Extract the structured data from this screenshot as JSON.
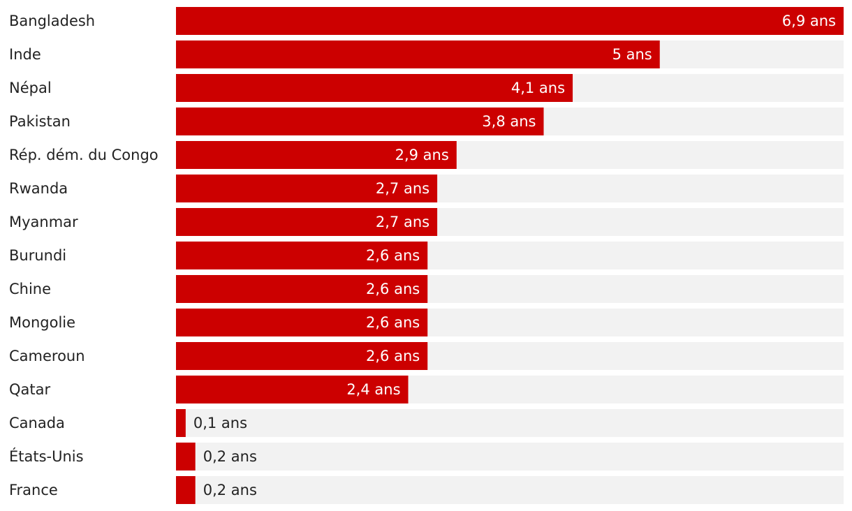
{
  "chart_data": {
    "type": "bar",
    "orientation": "horizontal",
    "unit_suffix": " ans",
    "categories": [
      "Bangladesh",
      "Inde",
      "Népal",
      "Pakistan",
      "Rép. dém. du Congo",
      "Rwanda",
      "Myanmar",
      "Burundi",
      "Chine",
      "Mongolie",
      "Cameroun",
      "Qatar",
      "Canada",
      "États-Unis",
      "France"
    ],
    "values": [
      6.9,
      5,
      4.1,
      3.8,
      2.9,
      2.7,
      2.7,
      2.6,
      2.6,
      2.6,
      2.6,
      2.4,
      0.1,
      0.2,
      0.2
    ],
    "value_labels": [
      "6,9 ans",
      "5 ans",
      "4,1 ans",
      "3,8 ans",
      "2,9 ans",
      "2,7 ans",
      "2,7 ans",
      "2,6 ans",
      "2,6 ans",
      "2,6 ans",
      "2,6 ans",
      "2,4 ans",
      "0,1 ans",
      "0,2 ans",
      "0,2 ans"
    ],
    "xlim": [
      0,
      6.9
    ],
    "title": "",
    "xlabel": "",
    "ylabel": "",
    "grid": false,
    "legend": "none"
  },
  "colors": {
    "bar": "#cc0000",
    "track": "#f2f2f2",
    "label_inside": "#ffffff",
    "label_outside": "#222222",
    "category_text": "#222222"
  }
}
